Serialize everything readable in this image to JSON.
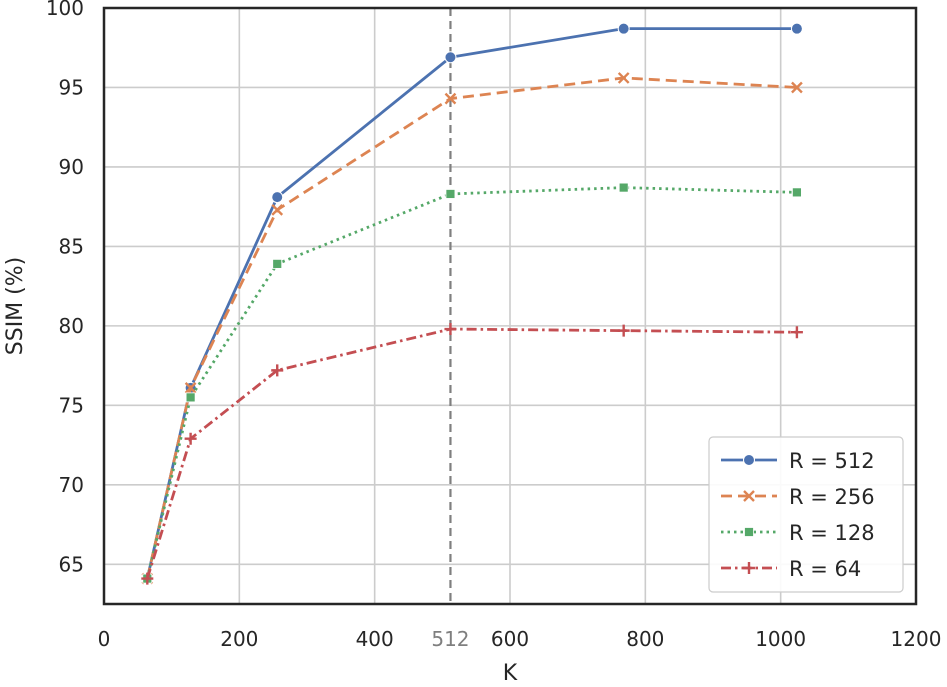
{
  "chart_data": {
    "type": "line",
    "xlabel": "K",
    "ylabel": "SSIM (%)",
    "xlim": [
      0,
      1200
    ],
    "ylim": [
      62.5,
      100
    ],
    "x_ticks": [
      0,
      200,
      400,
      600,
      800,
      1000,
      1200
    ],
    "y_ticks": [
      65,
      70,
      75,
      80,
      85,
      90,
      95,
      100
    ],
    "grid": true,
    "legend_position": "lower-right",
    "reference_line": {
      "x": 512,
      "label": "512",
      "color": "#7f7f7f",
      "style": "dashed"
    },
    "x": [
      64,
      128,
      256,
      512,
      768,
      1024
    ],
    "series": [
      {
        "name": "R = 512",
        "color": "#4c72b0",
        "marker": "circle",
        "dash": "solid",
        "values": [
          64.1,
          76.1,
          88.1,
          96.9,
          98.7,
          98.7
        ]
      },
      {
        "name": "R = 256",
        "color": "#dd8452",
        "marker": "x",
        "dash": "dashed",
        "values": [
          64.1,
          76.1,
          87.3,
          94.3,
          95.6,
          95.0
        ]
      },
      {
        "name": "R = 128",
        "color": "#55a868",
        "marker": "square",
        "dash": "dotted",
        "values": [
          64.1,
          75.5,
          83.9,
          88.3,
          88.7,
          88.4
        ]
      },
      {
        "name": "R = 64",
        "color": "#c44e52",
        "marker": "plus",
        "dash": "dashdot",
        "values": [
          64.1,
          72.9,
          77.2,
          79.8,
          79.7,
          79.6
        ]
      }
    ]
  }
}
